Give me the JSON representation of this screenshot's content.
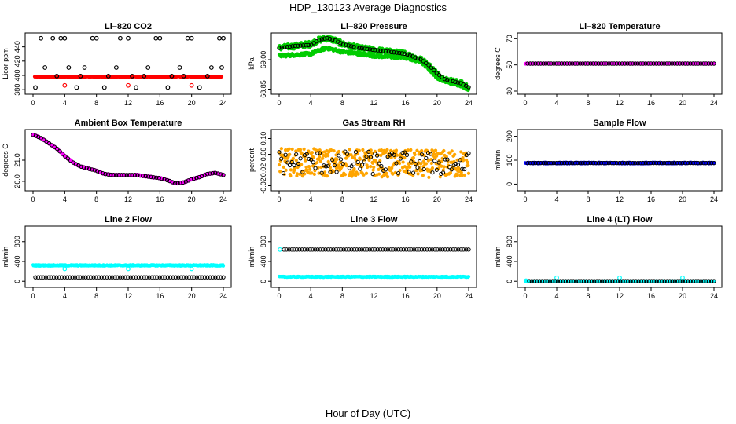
{
  "figure": {
    "title": "HDP_130123  Average Diagnostics",
    "xlabel": "Hour of Day (UTC)"
  },
  "colors": {
    "axis": "#000000",
    "red": "#ff0000",
    "green": "#00cc00",
    "magenta": "#ff00ff",
    "orange": "#ffa500",
    "blue": "#0000ff",
    "cyan": "#00ffff",
    "black": "#000000"
  },
  "chart_data": [
    {
      "type": "scatter",
      "title": "Li–820 CO2",
      "ylabel": "Licor ppm",
      "xlim": [
        0,
        24
      ],
      "ylim": [
        378,
        455
      ],
      "xticks": [
        "0",
        "4",
        "8",
        "12",
        "16",
        "20",
        "24"
      ],
      "xtick_values": [
        0,
        4,
        8,
        12,
        16,
        20,
        24
      ],
      "yticks": [
        "380",
        "400",
        "420",
        "440"
      ],
      "ytick_values": [
        380,
        400,
        420,
        440
      ],
      "series": [
        {
          "color": "red",
          "marker": "dot",
          "pattern": "dense",
          "x": [
            0.2,
            23.8
          ],
          "y": [
            398,
            398
          ],
          "jitter": 0.6
        },
        {
          "color": "red",
          "marker": "circle",
          "pattern": "points",
          "x": [
            4,
            12,
            20
          ],
          "y": [
            386,
            386,
            386
          ]
        },
        {
          "color": "black",
          "marker": "circle",
          "pattern": "points",
          "x": [
            1,
            3.5,
            4,
            7.5,
            8,
            11,
            12,
            15.5,
            16,
            19.5,
            20,
            23.5,
            24,
            0.3,
            5.5,
            9,
            13,
            17,
            21,
            2.5,
            4.5,
            6.5,
            10.5,
            14.5,
            18.5,
            22.5,
            1.5,
            3,
            6,
            9.5,
            12.5,
            14,
            17.5,
            19,
            22,
            23.8
          ],
          "y": [
            452,
            452,
            452,
            452,
            452,
            452,
            452,
            452,
            452,
            452,
            452,
            452,
            452,
            383,
            383,
            383,
            383,
            383,
            383,
            452,
            411,
            411,
            411,
            411,
            411,
            411,
            411,
            399,
            399,
            399,
            399,
            399,
            399,
            399,
            399,
            411
          ]
        }
      ]
    },
    {
      "type": "scatter",
      "title": "Li–820 Pressure",
      "ylabel": "kPa",
      "xlim": [
        0,
        24
      ],
      "ylim": [
        68.84,
        69.12
      ],
      "xticks": [
        "0",
        "4",
        "8",
        "12",
        "16",
        "20",
        "24"
      ],
      "xtick_values": [
        0,
        4,
        8,
        12,
        16,
        20,
        24
      ],
      "yticks": [
        "68.85",
        "69.00"
      ],
      "ytick_values": [
        68.85,
        69.0
      ],
      "series": [
        {
          "color": "green",
          "marker": "dot",
          "pattern": "dense",
          "x": [
            0,
            2,
            4,
            5,
            6,
            7,
            8,
            10,
            12,
            14,
            16,
            18,
            19,
            20,
            21,
            22,
            23,
            24
          ],
          "y": [
            69.06,
            69.07,
            69.08,
            69.1,
            69.11,
            69.1,
            69.08,
            69.06,
            69.05,
            69.04,
            69.03,
            69.0,
            68.97,
            68.93,
            68.9,
            68.89,
            68.88,
            68.86
          ],
          "jitter": 0.015
        },
        {
          "color": "green",
          "marker": "dot",
          "pattern": "dense",
          "x": [
            0,
            2,
            4,
            6,
            8,
            10,
            12,
            14,
            16,
            18,
            19,
            20,
            21,
            22,
            23,
            24
          ],
          "y": [
            69.02,
            69.025,
            69.03,
            69.06,
            69.04,
            69.03,
            69.02,
            69.015,
            69.01,
            68.99,
            68.95,
            68.91,
            68.89,
            68.88,
            68.87,
            68.85
          ],
          "jitter": 0.008
        },
        {
          "color": "black",
          "marker": "circle",
          "pattern": "line",
          "x": [
            0,
            2,
            4,
            5,
            6,
            7,
            8,
            10,
            12,
            14,
            16,
            18,
            19,
            20,
            21,
            22,
            23,
            24
          ],
          "y": [
            69.06,
            69.07,
            69.075,
            69.1,
            69.11,
            69.1,
            69.08,
            69.06,
            69.05,
            69.04,
            69.03,
            69.0,
            68.97,
            68.93,
            68.9,
            68.89,
            68.88,
            68.86
          ]
        }
      ]
    },
    {
      "type": "scatter",
      "title": "Li–820 Temperature",
      "ylabel": "degrees C",
      "xlim": [
        0,
        24
      ],
      "ylim": [
        30,
        72
      ],
      "xticks": [
        "0",
        "4",
        "8",
        "12",
        "16",
        "20",
        "24"
      ],
      "xtick_values": [
        0,
        4,
        8,
        12,
        16,
        20,
        24
      ],
      "yticks": [
        "30",
        "50",
        "70"
      ],
      "ytick_values": [
        30,
        50,
        70
      ],
      "series": [
        {
          "color": "magenta",
          "marker": "dot",
          "pattern": "dense",
          "x": [
            0,
            24
          ],
          "y": [
            51,
            51
          ],
          "jitter": 0.3
        },
        {
          "color": "black",
          "marker": "circle",
          "pattern": "line",
          "x": [
            0.3,
            24
          ],
          "y": [
            51,
            51
          ]
        }
      ]
    },
    {
      "type": "scatter",
      "title": "Ambient Box Temperature",
      "ylabel": "degrees C",
      "xlim": [
        0,
        24
      ],
      "ylim": [
        19.7,
        22.3
      ],
      "xticks": [
        "0",
        "4",
        "8",
        "12",
        "16",
        "20",
        "24"
      ],
      "xtick_values": [
        0,
        4,
        8,
        12,
        16,
        20,
        24
      ],
      "yticks": [
        "20.0",
        "21.0"
      ],
      "ytick_values": [
        20.0,
        21.0
      ],
      "series": [
        {
          "color": "magenta",
          "marker": "dot",
          "pattern": "dense",
          "x": [
            0,
            1,
            2,
            3,
            4,
            5,
            6,
            7,
            8,
            9,
            10,
            11,
            12,
            13,
            14,
            15,
            16,
            17,
            18,
            19,
            20,
            21,
            22,
            23,
            24
          ],
          "y": [
            22.2,
            22.05,
            21.8,
            21.55,
            21.2,
            20.9,
            20.7,
            20.6,
            20.5,
            20.35,
            20.3,
            20.3,
            20.3,
            20.3,
            20.25,
            20.2,
            20.15,
            20.05,
            19.9,
            19.95,
            20.1,
            20.2,
            20.35,
            20.4,
            20.3
          ],
          "jitter": 0.03
        },
        {
          "color": "black",
          "marker": "circle",
          "pattern": "line",
          "x": [
            0,
            1,
            2,
            3,
            4,
            5,
            6,
            7,
            8,
            9,
            10,
            11,
            12,
            13,
            14,
            15,
            16,
            17,
            18,
            19,
            20,
            21,
            22,
            23,
            24
          ],
          "y": [
            22.2,
            22.05,
            21.8,
            21.55,
            21.2,
            20.9,
            20.7,
            20.6,
            20.5,
            20.35,
            20.3,
            20.3,
            20.3,
            20.3,
            20.25,
            20.2,
            20.15,
            20.05,
            19.9,
            19.95,
            20.1,
            20.2,
            20.35,
            20.4,
            20.3
          ]
        }
      ]
    },
    {
      "type": "scatter",
      "title": "Gas Stream RH",
      "ylabel": "percent",
      "xlim": [
        0,
        24
      ],
      "ylim": [
        -0.025,
        0.115
      ],
      "xticks": [
        "0",
        "4",
        "8",
        "12",
        "16",
        "20",
        "24"
      ],
      "xtick_values": [
        0,
        4,
        8,
        12,
        16,
        20,
        24
      ],
      "yticks": [
        "-0.02",
        "0.02",
        "0.06",
        "0.10"
      ],
      "ytick_values": [
        -0.02,
        0.02,
        0.06,
        0.1
      ],
      "series": [
        {
          "color": "orange",
          "marker": "dot",
          "pattern": "dense",
          "x": [
            0,
            24
          ],
          "y": [
            0.04,
            0.035
          ],
          "jitter": 0.035
        },
        {
          "color": "black",
          "marker": "circle",
          "pattern": "scatter",
          "x": [
            0,
            24
          ],
          "y": [
            0.04,
            0.035
          ],
          "jitter": 0.03
        }
      ]
    },
    {
      "type": "scatter",
      "title": "Sample Flow",
      "ylabel": "ml/min",
      "xlim": [
        0,
        24
      ],
      "ylim": [
        -15,
        215
      ],
      "xticks": [
        "0",
        "4",
        "8",
        "12",
        "16",
        "20",
        "24"
      ],
      "xtick_values": [
        0,
        4,
        8,
        12,
        16,
        20,
        24
      ],
      "yticks": [
        "0",
        "100",
        "200"
      ],
      "ytick_values": [
        0,
        100,
        200
      ],
      "series": [
        {
          "color": "blue",
          "marker": "dot",
          "pattern": "dense",
          "x": [
            0,
            24
          ],
          "y": [
            88,
            88
          ],
          "jitter": 3
        },
        {
          "color": "black",
          "marker": "circle",
          "pattern": "line",
          "x": [
            0.3,
            24
          ],
          "y": [
            88,
            88
          ]
        }
      ]
    },
    {
      "type": "scatter",
      "title": "Line 2 Flow",
      "ylabel": "ml/min",
      "xlim": [
        0,
        24
      ],
      "ylim": [
        -60,
        1050
      ],
      "xticks": [
        "0",
        "4",
        "8",
        "12",
        "16",
        "20",
        "24"
      ],
      "xtick_values": [
        0,
        4,
        8,
        12,
        16,
        20,
        24
      ],
      "yticks": [
        "0",
        "400",
        "800"
      ],
      "ytick_values": [
        0,
        400,
        800
      ],
      "series": [
        {
          "color": "cyan",
          "marker": "dot",
          "pattern": "dense",
          "x": [
            0,
            24
          ],
          "y": [
            320,
            320
          ],
          "jitter": 12
        },
        {
          "color": "cyan",
          "marker": "circle",
          "pattern": "points",
          "x": [
            4,
            12,
            20
          ],
          "y": [
            250,
            250,
            250
          ]
        },
        {
          "color": "black",
          "marker": "circle",
          "pattern": "line",
          "x": [
            0.3,
            24
          ],
          "y": [
            80,
            80
          ]
        }
      ]
    },
    {
      "type": "scatter",
      "title": "Line 3 Flow",
      "ylabel": "ml/min",
      "xlim": [
        0,
        24
      ],
      "ylim": [
        -60,
        1050
      ],
      "xticks": [
        "0",
        "4",
        "8",
        "12",
        "16",
        "20",
        "24"
      ],
      "xtick_values": [
        0,
        4,
        8,
        12,
        16,
        20,
        24
      ],
      "yticks": [
        "0",
        "400",
        "800"
      ],
      "ytick_values": [
        0,
        400,
        800
      ],
      "series": [
        {
          "color": "cyan",
          "marker": "dot",
          "pattern": "dense",
          "x": [
            0,
            24
          ],
          "y": [
            90,
            90
          ],
          "jitter": 10
        },
        {
          "color": "cyan",
          "marker": "circle",
          "pattern": "points",
          "x": [
            0.1
          ],
          "y": [
            640
          ]
        },
        {
          "color": "black",
          "marker": "circle",
          "pattern": "line",
          "x": [
            0.6,
            24
          ],
          "y": [
            640,
            640
          ]
        }
      ]
    },
    {
      "type": "scatter",
      "title": "Line 4 (LT) Flow",
      "ylabel": "ml/min",
      "xlim": [
        0,
        24
      ],
      "ylim": [
        -60,
        1050
      ],
      "xticks": [
        "0",
        "4",
        "8",
        "12",
        "16",
        "20",
        "24"
      ],
      "xtick_values": [
        0,
        4,
        8,
        12,
        16,
        20,
        24
      ],
      "yticks": [
        "0",
        "400",
        "800"
      ],
      "ytick_values": [
        0,
        400,
        800
      ],
      "series": [
        {
          "color": "cyan",
          "marker": "dot",
          "pattern": "dense",
          "x": [
            0,
            24
          ],
          "y": [
            3,
            3
          ],
          "jitter": 3
        },
        {
          "color": "cyan",
          "marker": "circle",
          "pattern": "points",
          "x": [
            0.1,
            4,
            12,
            20
          ],
          "y": [
            10,
            70,
            70,
            70
          ]
        },
        {
          "color": "black",
          "marker": "circle",
          "pattern": "line",
          "x": [
            0.5,
            24
          ],
          "y": [
            3,
            3
          ]
        }
      ]
    }
  ]
}
